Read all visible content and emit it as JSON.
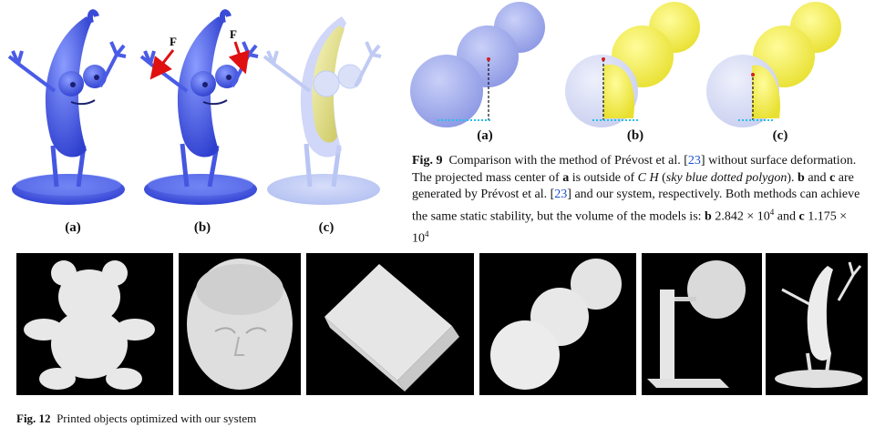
{
  "figure_top_left": {
    "force_label": "F",
    "subfigure_labels": [
      "(a)",
      "(b)",
      "(c)"
    ]
  },
  "figure9": {
    "subfigure_labels": [
      "(a)",
      "(b)",
      "(c)"
    ],
    "caption": {
      "label": "Fig. 9",
      "text_1": "Comparison with the method of Prévost et al. [",
      "ref_1": "23",
      "text_2": "] without surface deformation. The projected mass center of ",
      "a": "a",
      "text_3": " is outside of ",
      "ch": "C H",
      "text_4": " (",
      "sky": "sky blue dotted polygon",
      "text_5": "). ",
      "b": "b",
      "text_6": " and ",
      "c": "c",
      "text_7": " are generated by Prévost et al. [",
      "ref_2": "23",
      "text_8": "] and our system, respectively. Both methods can achieve the same static stability, but the volume of the models is: ",
      "b2": "b",
      "vol_b": " 2.842 × 10",
      "exp_b": "4",
      "text_9": " and ",
      "c2": "c",
      "vol_c": " 1.175 × 10",
      "exp_c": "4"
    }
  },
  "figure12": {
    "caption_label": "Fig. 12",
    "caption_text": "Printed objects optimized with our system"
  },
  "colors": {
    "blue_model": "#4a5fe8",
    "yellow_model": "#f4f04a",
    "light_blue_sphere": "#aab4ee",
    "link_blue": "#1a4fd0",
    "photo_bg": "#000000"
  }
}
